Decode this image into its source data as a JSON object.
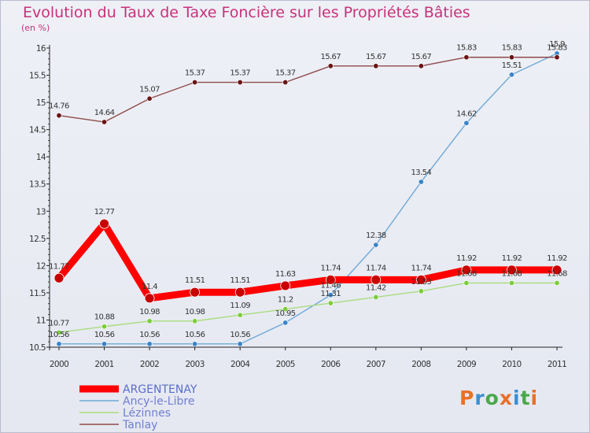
{
  "header": {
    "title": "Evolution du Taux de Taxe Foncière sur les Propriétés Bâties",
    "unit": "(en %)"
  },
  "logo": {
    "text": "Proxiti",
    "colors": [
      "#e8702a",
      "#3a8fd1",
      "#4aa84a",
      "#e8702a",
      "#3a8fd1",
      "#4aa84a",
      "#e8702a"
    ]
  },
  "chart_data": {
    "type": "line",
    "title": "Evolution du Taux de Taxe Foncière sur les Propriétés Bâties",
    "ylabel": "(en %)",
    "xlabel": "",
    "x": [
      "2000",
      "2001",
      "2002",
      "2003",
      "2004",
      "2005",
      "2006",
      "2007",
      "2008",
      "2009",
      "2010",
      "2011"
    ],
    "ylim": [
      10.5,
      16
    ],
    "yticks": [
      "10.5",
      "11",
      "11.5",
      "12",
      "12.5",
      "13",
      "13.5",
      "14",
      "14.5",
      "15",
      "15.5",
      "16"
    ],
    "grid": false,
    "legend_position": "bottom-left",
    "series": [
      {
        "name": "ARGENTENAY",
        "color": "#ff0000",
        "marker": "#c80000",
        "width": 9,
        "r": 6,
        "values": [
          11.77,
          12.77,
          11.4,
          11.51,
          11.51,
          11.63,
          11.74,
          11.74,
          11.74,
          11.92,
          11.92,
          11.92
        ],
        "labels": [
          "11.77",
          "12.77",
          "11.4",
          "11.51",
          "11.51",
          "11.63",
          "11.74",
          "11.74",
          "11.74",
          "11.92",
          "11.92",
          "11.92"
        ]
      },
      {
        "name": "Ancy-le-Libre",
        "color": "#6ea9d8",
        "marker": "#3a83c8",
        "width": 1.4,
        "r": 3.2,
        "values": [
          10.56,
          10.56,
          10.56,
          10.56,
          10.56,
          10.95,
          11.46,
          12.38,
          13.54,
          14.62,
          15.51,
          15.9
        ],
        "labels": [
          "10.56",
          "10.56",
          "10.56",
          "10.56",
          "10.56",
          "10.95",
          "11.46",
          "12.38",
          "13.54",
          "14.62",
          "15.51",
          "15.9"
        ]
      },
      {
        "name": "Lézinnes",
        "color": "#a9dc7e",
        "marker": "#7ccd3c",
        "width": 1.4,
        "r": 3.2,
        "values": [
          10.77,
          10.88,
          10.98,
          10.98,
          11.09,
          11.2,
          11.31,
          11.42,
          11.53,
          11.68,
          11.68,
          11.68
        ],
        "labels": [
          "10.77",
          "10.88",
          "10.98",
          "10.98",
          "11.09",
          "11.2",
          "11.31",
          "11.42",
          "11.53",
          "11.68",
          "11.68",
          "11.68"
        ]
      },
      {
        "name": "Tanlay",
        "color": "#8e4b4b",
        "marker": "#6a1414",
        "width": 1.4,
        "r": 3.2,
        "values": [
          14.76,
          14.64,
          15.07,
          15.37,
          15.37,
          15.37,
          15.67,
          15.67,
          15.67,
          15.83,
          15.83,
          15.83
        ],
        "labels": [
          "14.76",
          "14.64",
          "15.07",
          "15.37",
          "15.37",
          "15.37",
          "15.67",
          "15.67",
          "15.67",
          "15.83",
          "15.83",
          "15.83"
        ]
      }
    ]
  }
}
